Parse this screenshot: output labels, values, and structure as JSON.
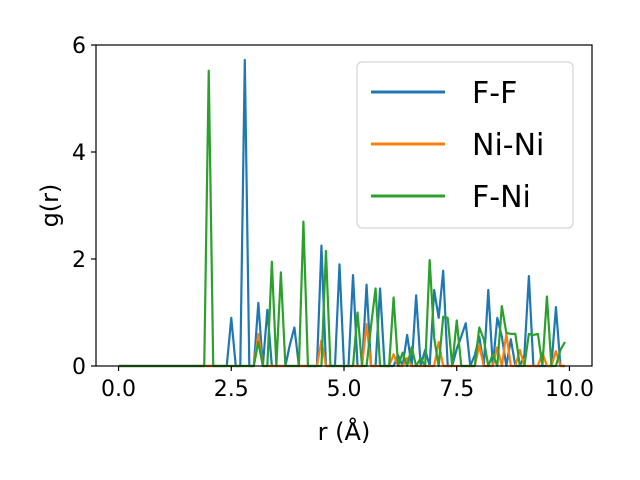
{
  "chart_data": {
    "type": "line",
    "xlabel": "r (Å)",
    "ylabel": "g(r)",
    "xlim": [
      -0.5,
      10.5
    ],
    "ylim": [
      0,
      6
    ],
    "xticks": [
      0.0,
      2.5,
      5.0,
      7.5,
      10.0
    ],
    "xtick_labels": [
      "0.0",
      "2.5",
      "5.0",
      "7.5",
      "10.0"
    ],
    "yticks": [
      0,
      2,
      4,
      6
    ],
    "ytick_labels": [
      "0",
      "2",
      "4",
      "6"
    ],
    "grid": false,
    "legend_position": "top-right",
    "series": [
      {
        "name": "F-F",
        "color": "#1f77b4",
        "x": [
          0.0,
          0.1,
          0.2,
          0.3,
          0.4,
          0.5,
          0.6,
          0.7,
          0.8,
          0.9,
          1.0,
          1.1,
          1.2,
          1.3,
          1.4,
          1.5,
          1.6,
          1.7,
          1.8,
          1.9,
          2.0,
          2.1,
          2.2,
          2.3,
          2.4,
          2.5,
          2.6,
          2.7,
          2.8,
          2.9,
          3.0,
          3.1,
          3.2,
          3.3,
          3.4,
          3.5,
          3.6,
          3.7,
          3.8,
          3.9,
          4.0,
          4.1,
          4.2,
          4.3,
          4.4,
          4.5,
          4.6,
          4.7,
          4.8,
          4.9,
          5.0,
          5.1,
          5.2,
          5.3,
          5.4,
          5.5,
          5.6,
          5.7,
          5.8,
          5.9,
          6.0,
          6.1,
          6.2,
          6.3,
          6.4,
          6.5,
          6.6,
          6.7,
          6.8,
          6.9,
          7.0,
          7.1,
          7.2,
          7.3,
          7.4,
          7.5,
          7.6,
          7.7,
          7.8,
          7.9,
          8.0,
          8.1,
          8.2,
          8.3,
          8.4,
          8.5,
          8.6,
          8.7,
          8.8,
          8.9,
          9.0,
          9.1,
          9.2,
          9.3,
          9.4,
          9.5,
          9.6,
          9.7,
          9.8,
          9.9
        ],
        "y": [
          0,
          0,
          0,
          0,
          0,
          0,
          0,
          0,
          0,
          0,
          0,
          0,
          0,
          0,
          0,
          0,
          0,
          0,
          0,
          0,
          0,
          0,
          0,
          0,
          0,
          0.9,
          0,
          0,
          5.72,
          0,
          0,
          1.18,
          0,
          1.05,
          0,
          0,
          0,
          0,
          0.4,
          0.72,
          0,
          0,
          0,
          0,
          0,
          2.25,
          0,
          0,
          0,
          1.9,
          0,
          0,
          1.7,
          0,
          0,
          1.52,
          0,
          0,
          1.45,
          0,
          0,
          0,
          0.2,
          0,
          0.58,
          0,
          1.32,
          0,
          0.3,
          0,
          1.42,
          0.9,
          1.78,
          0,
          0,
          0.32,
          0.55,
          0.8,
          0,
          0.2,
          0.55,
          0,
          1.42,
          0,
          0.9,
          0.55,
          0,
          0.5,
          0,
          0,
          0.2,
          1.68,
          0,
          0,
          0,
          0,
          0,
          1.1,
          0,
          0
        ]
      },
      {
        "name": "Ni-Ni",
        "color": "#ff7f0e",
        "x": [
          0.0,
          0.1,
          0.2,
          0.3,
          0.4,
          0.5,
          0.6,
          0.7,
          0.8,
          0.9,
          1.0,
          1.1,
          1.2,
          1.3,
          1.4,
          1.5,
          1.6,
          1.7,
          1.8,
          1.9,
          2.0,
          2.1,
          2.2,
          2.3,
          2.4,
          2.5,
          2.6,
          2.7,
          2.8,
          2.9,
          3.0,
          3.1,
          3.2,
          3.3,
          3.4,
          3.5,
          3.6,
          3.7,
          3.8,
          3.9,
          4.0,
          4.1,
          4.2,
          4.3,
          4.4,
          4.5,
          4.6,
          4.7,
          4.8,
          4.9,
          5.0,
          5.1,
          5.2,
          5.3,
          5.4,
          5.5,
          5.6,
          5.7,
          5.8,
          5.9,
          6.0,
          6.1,
          6.2,
          6.3,
          6.4,
          6.5,
          6.6,
          6.7,
          6.8,
          6.9,
          7.0,
          7.1,
          7.2,
          7.3,
          7.4,
          7.5,
          7.6,
          7.7,
          7.8,
          7.9,
          8.0,
          8.1,
          8.2,
          8.3,
          8.4,
          8.5,
          8.6,
          8.7,
          8.8,
          8.9,
          9.0,
          9.1,
          9.2,
          9.3,
          9.4,
          9.5,
          9.6,
          9.7,
          9.8,
          9.9
        ],
        "y": [
          0,
          0,
          0,
          0,
          0,
          0,
          0,
          0,
          0,
          0,
          0,
          0,
          0,
          0,
          0,
          0,
          0,
          0,
          0,
          0,
          0,
          0,
          0,
          0,
          0,
          0,
          0,
          0,
          0,
          0,
          0,
          0.6,
          0,
          0,
          0,
          0,
          0,
          0,
          0,
          0,
          0,
          0,
          0,
          0,
          0,
          0.48,
          0,
          0,
          0,
          0,
          0,
          0,
          0,
          0,
          0,
          0.78,
          0,
          0,
          0,
          0,
          0,
          0.22,
          0,
          0,
          0.15,
          0,
          0,
          0,
          0,
          0,
          0,
          0.45,
          0,
          0,
          0,
          0,
          0,
          0,
          0,
          0,
          0.38,
          0,
          0,
          0,
          0.35,
          0,
          0.6,
          0,
          0,
          0.3,
          0,
          0,
          0,
          0,
          0.25,
          0,
          0,
          0.28,
          0,
          0
        ]
      },
      {
        "name": "F-Ni",
        "color": "#2ca02c",
        "x": [
          0.0,
          0.1,
          0.2,
          0.3,
          0.4,
          0.5,
          0.6,
          0.7,
          0.8,
          0.9,
          1.0,
          1.1,
          1.2,
          1.3,
          1.4,
          1.5,
          1.6,
          1.7,
          1.8,
          1.9,
          2.0,
          2.1,
          2.2,
          2.3,
          2.4,
          2.5,
          2.6,
          2.7,
          2.8,
          2.9,
          3.0,
          3.1,
          3.2,
          3.3,
          3.4,
          3.5,
          3.6,
          3.7,
          3.8,
          3.9,
          4.0,
          4.1,
          4.2,
          4.3,
          4.4,
          4.5,
          4.6,
          4.7,
          4.8,
          4.9,
          5.0,
          5.1,
          5.2,
          5.3,
          5.4,
          5.5,
          5.6,
          5.7,
          5.8,
          5.9,
          6.0,
          6.1,
          6.2,
          6.3,
          6.4,
          6.5,
          6.6,
          6.7,
          6.8,
          6.9,
          7.0,
          7.1,
          7.2,
          7.3,
          7.4,
          7.5,
          7.6,
          7.7,
          7.8,
          7.9,
          8.0,
          8.1,
          8.2,
          8.3,
          8.4,
          8.5,
          8.6,
          8.7,
          8.8,
          8.9,
          9.0,
          9.1,
          9.2,
          9.3,
          9.4,
          9.5,
          9.6,
          9.7,
          9.8,
          9.9
        ],
        "y": [
          0,
          0,
          0,
          0,
          0,
          0,
          0,
          0,
          0,
          0,
          0,
          0,
          0,
          0,
          0,
          0,
          0,
          0,
          0,
          0,
          5.52,
          0,
          0,
          0,
          0,
          0,
          0,
          0,
          0,
          0,
          0,
          0.45,
          0,
          0,
          1.95,
          0,
          1.75,
          0,
          0,
          0,
          0,
          2.7,
          0,
          0,
          0,
          0,
          2.15,
          0,
          0,
          0,
          0,
          0,
          0,
          1.0,
          0,
          0,
          0.75,
          1.45,
          0,
          0,
          0,
          1.28,
          0,
          0.25,
          0,
          0.35,
          0,
          0.15,
          0,
          1.98,
          0.52,
          0,
          0.92,
          0.9,
          0,
          0.85,
          0,
          0,
          0,
          0,
          0.72,
          0.5,
          0,
          0.22,
          0,
          1.12,
          0.62,
          0.6,
          0.6,
          0,
          0,
          0.6,
          0.58,
          0.6,
          0,
          1.3,
          0,
          0,
          0.3,
          0.45
        ]
      }
    ]
  }
}
